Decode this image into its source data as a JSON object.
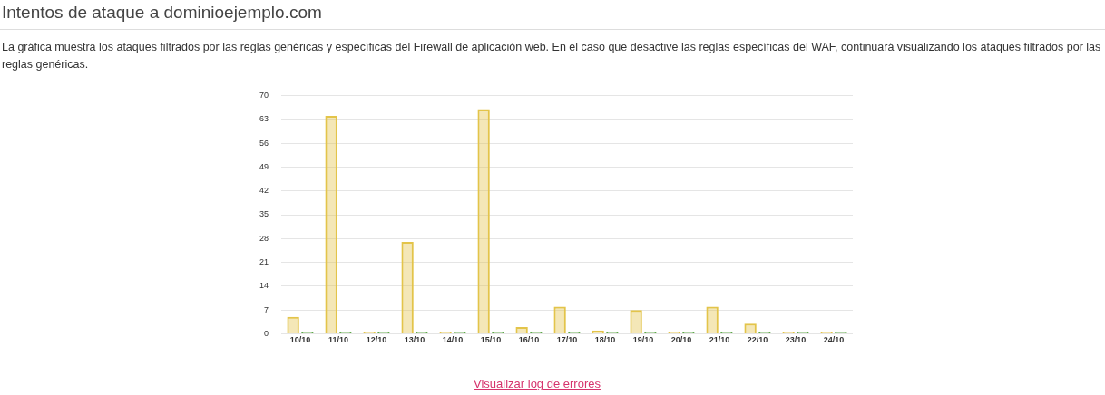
{
  "chart_data": {
    "type": "bar",
    "title": "Intentos de ataque a dominioejemplo.com",
    "subtitle": "La gráfica muestra los ataques filtrados por las reglas genéricas y específicas del Firewall de aplicación web. En el caso que desactive las reglas específicas del WAF, continuará visualizando los ataques filtrados por las reglas genéricas.",
    "categories": [
      "10/10",
      "11/10",
      "12/10",
      "13/10",
      "14/10",
      "15/10",
      "16/10",
      "17/10",
      "18/10",
      "19/10",
      "20/10",
      "21/10",
      "22/10",
      "23/10",
      "24/10"
    ],
    "series": [
      {
        "color": "#e3c44a",
        "values": [
          5,
          64,
          0,
          27,
          0,
          66,
          2,
          8,
          1,
          7,
          0,
          8,
          3,
          0,
          0
        ]
      },
      {
        "color": "#5fa84a",
        "values": [
          0,
          0,
          0,
          0,
          0,
          0,
          0,
          0,
          0,
          0,
          0,
          0,
          0,
          0,
          0
        ]
      }
    ],
    "ylim": [
      0,
      70
    ],
    "yticks": [
      0,
      7,
      14,
      21,
      28,
      35,
      42,
      49,
      56,
      63,
      70
    ],
    "grid": "y",
    "legend": false,
    "annotations": [
      "Visualizar log de errores"
    ]
  }
}
